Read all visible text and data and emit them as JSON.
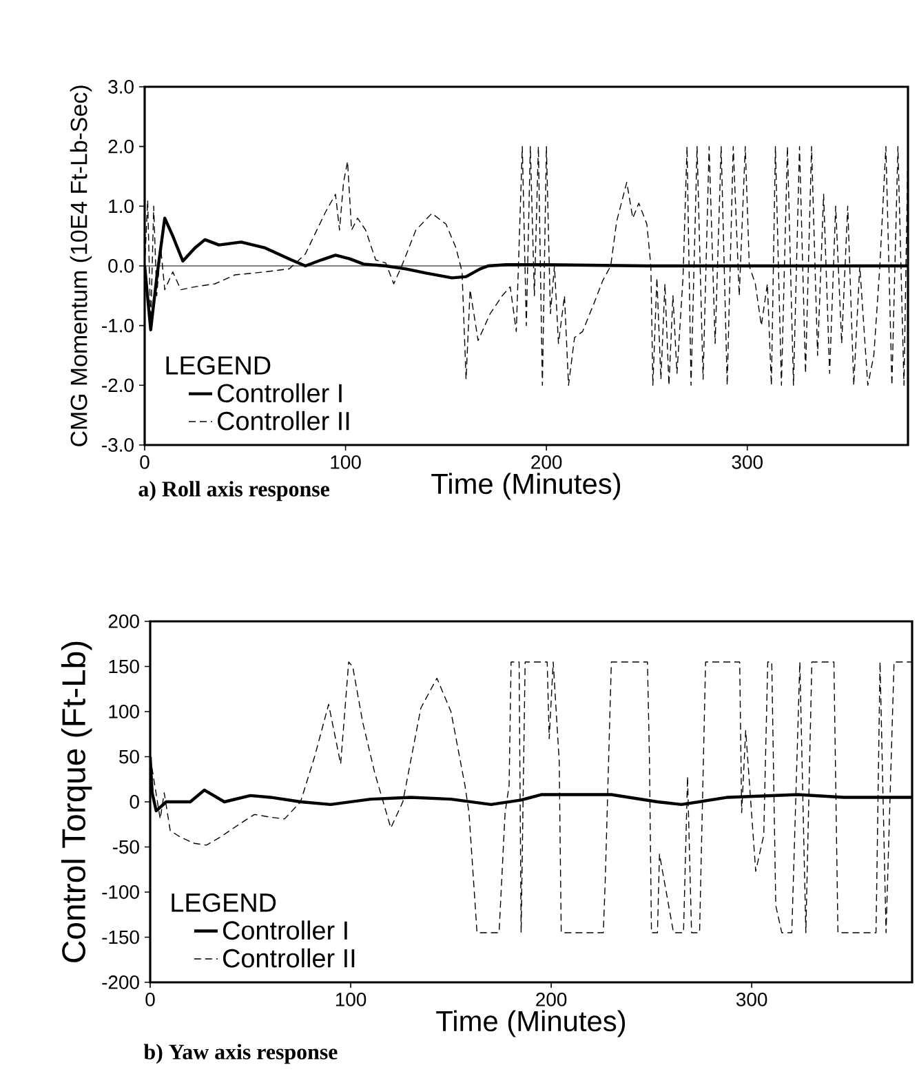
{
  "chart_data": [
    {
      "type": "line",
      "title": "a) Roll axis response",
      "xlabel": "Time (Minutes)",
      "ylabel": "CMG Momentum (10E4 Ft-Lb-Sec)",
      "legend_title": "LEGEND",
      "legend": "bottom left",
      "xlim": [
        0,
        380
      ],
      "xticks": [
        0,
        100,
        200,
        300
      ],
      "ylim": [
        -3,
        3
      ],
      "yticks": [
        {
          "value": -3,
          "label": "-3.0"
        },
        {
          "value": -2,
          "label": "-2.0"
        },
        {
          "value": -1,
          "label": "-1.0"
        },
        {
          "value": 0,
          "label": "0.0"
        },
        {
          "value": 1,
          "label": "1.0"
        },
        {
          "value": 2,
          "label": "2.0"
        },
        {
          "value": 3,
          "label": "3.0"
        }
      ],
      "ref_lines": [
        {
          "axis": "y",
          "value": 0,
          "color": "#000000"
        }
      ],
      "series": [
        {
          "name": "Controller I",
          "color": "#000000",
          "line_style": "solid",
          "x": [
            0,
            3,
            6,
            10,
            14,
            19,
            25,
            30,
            37,
            48,
            60,
            73,
            80,
            88,
            95,
            102,
            109,
            120,
            130,
            140,
            153,
            160,
            167,
            171,
            180,
            200,
            250,
            300,
            350,
            380
          ],
          "values": [
            0,
            -1.07,
            -0.2,
            0.8,
            0.5,
            0.08,
            0.3,
            0.44,
            0.35,
            0.4,
            0.3,
            0.1,
            0.0,
            0.1,
            0.18,
            0.12,
            0.03,
            0.0,
            -0.05,
            -0.12,
            -0.2,
            -0.18,
            -0.05,
            0.0,
            0.02,
            0.02,
            0.0,
            0.0,
            0.0,
            0.0
          ]
        },
        {
          "name": "Controller II",
          "color": "#000000",
          "line_style": "dashed",
          "x": [
            0,
            1.5,
            3,
            4.5,
            6,
            8,
            10,
            14,
            18,
            25,
            35,
            45,
            60,
            72,
            80,
            90,
            95,
            97,
            99,
            101,
            103,
            106,
            110,
            115,
            120,
            124,
            128,
            135,
            143,
            150,
            155,
            158,
            160,
            162,
            166,
            172,
            178,
            182,
            185,
            188,
            190,
            192,
            194,
            196,
            198,
            200,
            202,
            204,
            206,
            209,
            211,
            214,
            218,
            224,
            228,
            232,
            235,
            240,
            243,
            246,
            250,
            252,
            253,
            255,
            257,
            259,
            261,
            263,
            265,
            268,
            270,
            272,
            275,
            278,
            281,
            284,
            287,
            290,
            293,
            296,
            299,
            301,
            304,
            307,
            310,
            312,
            314,
            317,
            320,
            323,
            326,
            329,
            332,
            335,
            338,
            341,
            344,
            347,
            350,
            353,
            356,
            360,
            363,
            366,
            369,
            372,
            375,
            378,
            380
          ],
          "values": [
            0,
            1.1,
            -1.0,
            1.0,
            -0.5,
            0.3,
            -0.4,
            -0.1,
            -0.4,
            -0.35,
            -0.3,
            -0.15,
            -0.1,
            -0.05,
            0.2,
            0.9,
            1.2,
            0.6,
            1.4,
            1.75,
            0.6,
            0.8,
            0.6,
            0.1,
            0.05,
            -0.3,
            0.0,
            0.6,
            0.88,
            0.7,
            0.3,
            -0.1,
            -1.9,
            -0.4,
            -1.25,
            -0.8,
            -0.5,
            -0.35,
            -1.1,
            2.0,
            -1.0,
            2.0,
            -0.5,
            2.0,
            -2.0,
            2.0,
            -0.8,
            0.0,
            -1.3,
            -0.5,
            -2.0,
            -1.2,
            -1.1,
            -0.6,
            -0.25,
            0.0,
            0.75,
            1.4,
            0.8,
            1.05,
            0.7,
            0.0,
            -2.0,
            -0.2,
            -1.9,
            -0.3,
            -2.0,
            -0.5,
            -1.8,
            -0.2,
            2.0,
            -2.0,
            2.0,
            -1.9,
            2.0,
            -1.3,
            2.0,
            -2.0,
            2.0,
            -0.5,
            2.0,
            0.0,
            -0.3,
            -1.0,
            -0.3,
            -2.0,
            2.0,
            -2.0,
            2.0,
            -2.0,
            2.0,
            -1.8,
            2.0,
            -1.5,
            1.2,
            -1.8,
            1.0,
            -1.3,
            1.0,
            -2.0,
            0.0,
            -2.0,
            -1.5,
            0.0,
            2.0,
            -2.0,
            2.0,
            -2.0,
            2.0
          ]
        }
      ]
    },
    {
      "type": "line",
      "title": "b) Yaw axis response",
      "xlabel": "Time (Minutes)",
      "ylabel": "Control Torque (Ft-Lb)",
      "legend_title": "LEGEND",
      "legend": "bottom left",
      "xlim": [
        0,
        380
      ],
      "xticks": [
        0,
        100,
        200,
        300
      ],
      "ylim": [
        -200,
        200
      ],
      "yticks": [
        -200,
        -150,
        -100,
        -50,
        0,
        50,
        100,
        150,
        200
      ],
      "series": [
        {
          "name": "Controller I",
          "color": "#000000",
          "line_style": "solid",
          "x": [
            0,
            1,
            3,
            8,
            20,
            27,
            37,
            50,
            60,
            75,
            90,
            110,
            130,
            150,
            170,
            185,
            195,
            230,
            253,
            265,
            288,
            323,
            346,
            380
          ],
          "values": [
            50,
            10,
            -10,
            0,
            0,
            13,
            0,
            7,
            5,
            0,
            -3,
            3,
            5,
            3,
            -3,
            2,
            8,
            8,
            0,
            -3,
            5,
            8,
            5,
            5
          ]
        },
        {
          "name": "Controller II",
          "color": "#000000",
          "line_style": "dashed",
          "x": [
            0,
            5,
            7,
            10,
            15,
            22,
            28,
            35,
            45,
            52,
            60,
            67,
            75,
            82,
            89,
            95,
            99,
            101,
            106,
            112,
            120,
            126,
            135,
            143,
            150,
            157,
            159,
            163,
            174,
            177,
            179,
            180,
            184,
            185,
            187,
            198,
            199,
            201,
            204,
            205,
            226,
            227,
            230,
            248,
            249,
            250,
            253,
            254,
            261,
            266,
            268,
            270,
            274,
            277,
            294,
            295,
            297,
            302,
            306,
            308,
            310,
            312,
            315,
            320,
            324,
            327,
            330,
            341,
            343,
            362,
            364,
            367,
            371,
            380
          ],
          "values": [
            50,
            -19,
            10,
            -32,
            -39,
            -46,
            -48,
            -39,
            -24,
            -14,
            -17,
            -19,
            0,
            50,
            108,
            42,
            155,
            150,
            88,
            32,
            -29,
            0,
            104,
            137,
            100,
            18,
            -12,
            -145,
            -145,
            -12,
            18,
            155,
            155,
            -145,
            155,
            155,
            70,
            155,
            45,
            -145,
            -145,
            -84,
            155,
            155,
            49,
            -145,
            -145,
            -58,
            -145,
            -145,
            28,
            -145,
            -145,
            155,
            155,
            -12,
            79,
            -77,
            -37,
            155,
            155,
            -115,
            -145,
            -145,
            155,
            -145,
            155,
            155,
            -145,
            -145,
            155,
            -145,
            155,
            155
          ]
        }
      ]
    }
  ]
}
